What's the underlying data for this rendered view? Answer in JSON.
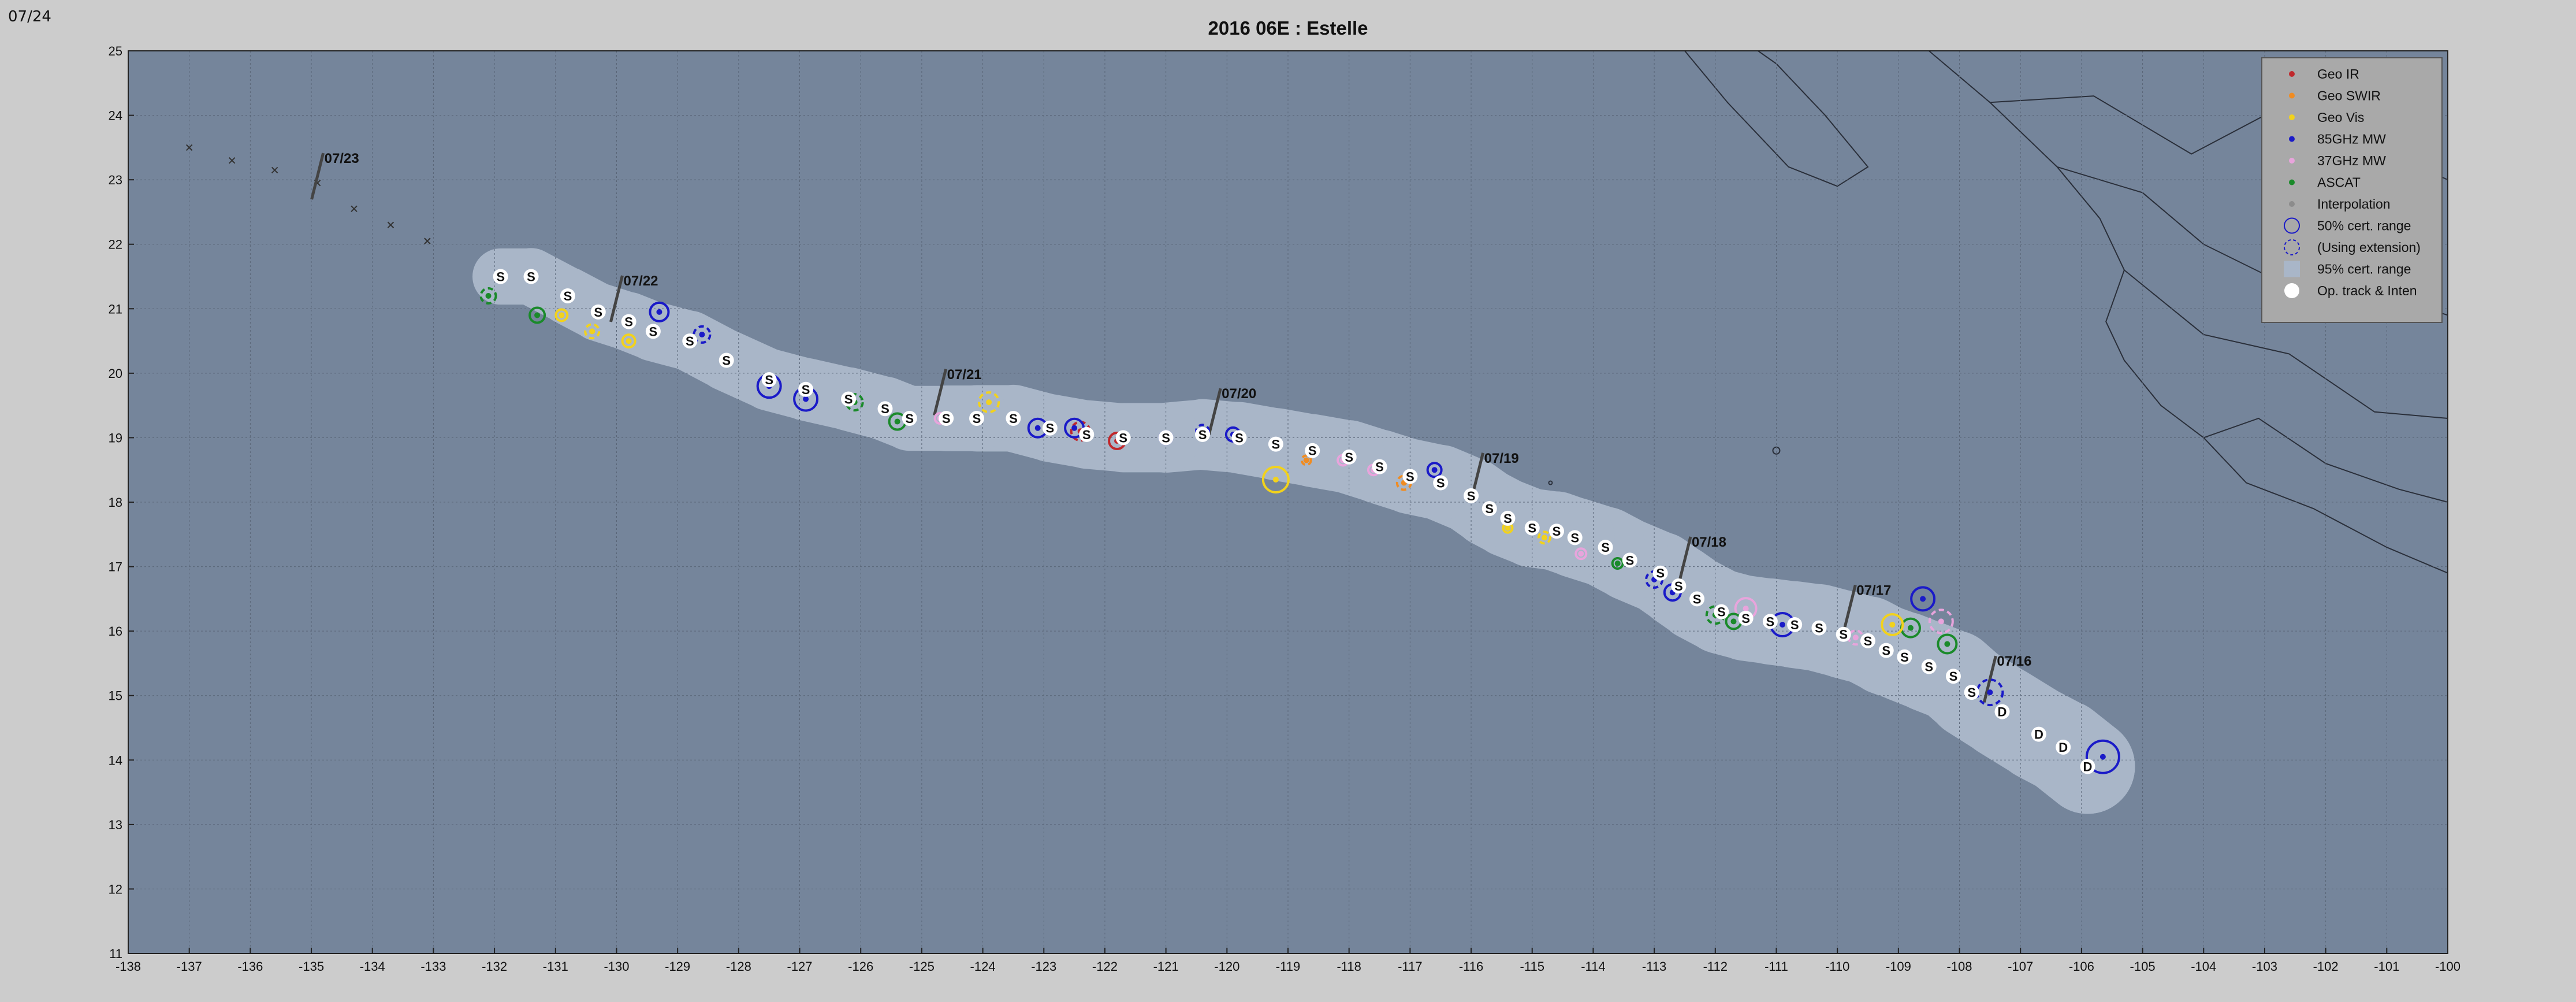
{
  "corner_label": "07/24",
  "chart_data": {
    "type": "scatter",
    "title": "2016  06E :  Estelle",
    "xlabel": "",
    "ylabel": "",
    "xlim": [
      -138,
      -100
    ],
    "ylim": [
      11,
      25
    ],
    "xticks": [
      -138,
      -137,
      -136,
      -135,
      -134,
      -133,
      -132,
      -131,
      -130,
      -129,
      -128,
      -127,
      -126,
      -125,
      -124,
      -123,
      -122,
      -121,
      -120,
      -119,
      -118,
      -117,
      -116,
      -115,
      -114,
      -113,
      -112,
      -111,
      -110,
      -109,
      -108,
      -107,
      -106,
      -105,
      -104,
      -103,
      -102,
      -101,
      -100
    ],
    "yticks": [
      11,
      12,
      13,
      14,
      15,
      16,
      17,
      18,
      19,
      20,
      21,
      22,
      23,
      24,
      25
    ],
    "grid": true,
    "legend_position": "top-right",
    "colors": {
      "ocean": "#75859b",
      "cone": "#a9b6c8",
      "land_line": "#2a2f3a",
      "geo_ir": "#c0282c",
      "geo_swir": "#f08c22",
      "geo_vis": "#f2d21c",
      "mw85": "#1a1ac8",
      "mw37": "#e8a4dc",
      "ascat": "#1a8a2a",
      "interp": "#8c8c8c",
      "op_track": "#ffffff"
    },
    "legend": [
      {
        "label": "Geo IR",
        "kind": "dot",
        "color": "#c0282c"
      },
      {
        "label": "Geo SWIR",
        "kind": "dot",
        "color": "#f08c22"
      },
      {
        "label": "Geo Vis",
        "kind": "dot",
        "color": "#f2d21c"
      },
      {
        "label": "85GHz MW",
        "kind": "dot",
        "color": "#1a1ac8"
      },
      {
        "label": "37GHz MW",
        "kind": "dot",
        "color": "#e8a4dc"
      },
      {
        "label": "ASCAT",
        "kind": "dot",
        "color": "#1a8a2a"
      },
      {
        "label": "Interpolation",
        "kind": "dot",
        "color": "#8c8c8c"
      },
      {
        "label": "50% cert. range",
        "kind": "circle",
        "color": "#1a1ac8"
      },
      {
        "label": "(Using extension)",
        "kind": "dashcircle",
        "color": "#1a1ac8"
      },
      {
        "label": "95% cert. range",
        "kind": "square",
        "color": "#a9b6c8"
      },
      {
        "label": "Op. track & Inten",
        "kind": "bigdot",
        "color": "#ffffff"
      }
    ],
    "op_track_points": [
      [
        -105.9,
        13.9,
        "D"
      ],
      [
        -106.3,
        14.2,
        "D"
      ],
      [
        -106.7,
        14.4,
        "D"
      ],
      [
        -107.3,
        14.75,
        "D"
      ],
      [
        -107.8,
        15.05,
        "S"
      ],
      [
        -108.1,
        15.3,
        "S"
      ],
      [
        -108.5,
        15.45,
        "S"
      ],
      [
        -108.9,
        15.6,
        "S"
      ],
      [
        -109.2,
        15.7,
        "S"
      ],
      [
        -109.5,
        15.85,
        "S"
      ],
      [
        -109.9,
        15.95,
        "S"
      ],
      [
        -110.3,
        16.05,
        "S"
      ],
      [
        -110.7,
        16.1,
        "S"
      ],
      [
        -111.1,
        16.15,
        "S"
      ],
      [
        -111.5,
        16.2,
        "S"
      ],
      [
        -111.9,
        16.3,
        "S"
      ],
      [
        -112.3,
        16.5,
        "S"
      ],
      [
        -112.6,
        16.7,
        "S"
      ],
      [
        -112.9,
        16.9,
        "S"
      ],
      [
        -113.4,
        17.1,
        "S"
      ],
      [
        -113.8,
        17.3,
        "S"
      ],
      [
        -114.3,
        17.45,
        "S"
      ],
      [
        -114.6,
        17.55,
        "S"
      ],
      [
        -115.0,
        17.6,
        "S"
      ],
      [
        -115.4,
        17.75,
        "S"
      ],
      [
        -115.7,
        17.9,
        "S"
      ],
      [
        -116.0,
        18.1,
        "S"
      ],
      [
        -116.5,
        18.3,
        "S"
      ],
      [
        -117.0,
        18.4,
        "S"
      ],
      [
        -117.5,
        18.55,
        "S"
      ],
      [
        -118.0,
        18.7,
        "S"
      ],
      [
        -118.6,
        18.8,
        "S"
      ],
      [
        -119.2,
        18.9,
        "S"
      ],
      [
        -119.8,
        19.0,
        "S"
      ],
      [
        -120.4,
        19.05,
        "S"
      ],
      [
        -121.0,
        19.0,
        "S"
      ],
      [
        -121.7,
        19.0,
        "S"
      ],
      [
        -122.3,
        19.05,
        "S"
      ],
      [
        -122.9,
        19.15,
        "S"
      ],
      [
        -123.5,
        19.3,
        "S"
      ],
      [
        -124.1,
        19.3,
        "S"
      ],
      [
        -124.6,
        19.3,
        "S"
      ],
      [
        -125.2,
        19.3,
        "S"
      ],
      [
        -125.6,
        19.45,
        "S"
      ],
      [
        -126.2,
        19.6,
        "S"
      ],
      [
        -126.9,
        19.75,
        "S"
      ],
      [
        -127.5,
        19.9,
        "S"
      ],
      [
        -128.2,
        20.2,
        "S"
      ],
      [
        -128.8,
        20.5,
        "S"
      ],
      [
        -129.4,
        20.65,
        "S"
      ],
      [
        -129.8,
        20.8,
        "S"
      ],
      [
        -130.3,
        20.95,
        "S"
      ],
      [
        -130.8,
        21.2,
        "S"
      ],
      [
        -131.4,
        21.5,
        "S"
      ],
      [
        -131.9,
        21.5,
        "S"
      ]
    ],
    "fixes": [
      [
        -105.65,
        14.05,
        "mw85",
        28
      ],
      [
        -107.5,
        15.05,
        "mw85",
        22
      ],
      [
        -108.2,
        15.8,
        "ascat",
        16
      ],
      [
        -108.6,
        16.5,
        "mw85",
        20
      ],
      [
        -108.3,
        16.15,
        "mw37",
        20
      ],
      [
        -108.8,
        16.05,
        "ascat",
        16
      ],
      [
        -109.1,
        16.1,
        "geo_vis",
        18
      ],
      [
        -109.7,
        15.9,
        "mw37",
        12
      ],
      [
        -110.9,
        16.1,
        "mw85",
        20
      ],
      [
        -111.5,
        16.35,
        "mw37",
        18
      ],
      [
        -112.0,
        16.25,
        "ascat",
        15
      ],
      [
        -111.7,
        16.15,
        "ascat",
        13
      ],
      [
        -112.7,
        16.6,
        "mw85",
        14
      ],
      [
        -113.0,
        16.8,
        "mw85",
        14
      ],
      [
        -113.6,
        17.05,
        "ascat",
        9
      ],
      [
        -114.2,
        17.2,
        "mw37",
        9
      ],
      [
        -114.8,
        17.45,
        "geo_vis",
        10
      ],
      [
        -115.4,
        17.6,
        "geo_vis",
        8
      ],
      [
        -116.6,
        18.5,
        "mw85",
        12
      ],
      [
        -117.1,
        18.3,
        "geo_swir",
        12
      ],
      [
        -117.6,
        18.5,
        "mw37",
        9
      ],
      [
        -118.1,
        18.65,
        "mw37",
        9
      ],
      [
        -118.7,
        18.65,
        "geo_swir",
        8
      ],
      [
        -119.2,
        18.35,
        "geo_vis",
        22
      ],
      [
        -119.9,
        19.05,
        "mw85",
        12
      ],
      [
        -120.4,
        19.1,
        "mw85",
        11
      ],
      [
        -121.0,
        19.0,
        "mw85",
        11
      ],
      [
        -121.8,
        18.95,
        "geo_ir",
        14
      ],
      [
        -122.4,
        19.1,
        "geo_ir",
        16
      ],
      [
        -122.5,
        19.15,
        "mw85",
        16
      ],
      [
        -123.1,
        19.15,
        "mw85",
        16
      ],
      [
        -123.9,
        19.55,
        "geo_vis",
        17
      ],
      [
        -124.7,
        19.3,
        "mw37",
        9
      ],
      [
        -125.4,
        19.25,
        "ascat",
        14
      ],
      [
        -126.1,
        19.55,
        "ascat",
        14
      ],
      [
        -126.9,
        19.6,
        "mw85",
        20
      ],
      [
        -127.5,
        19.8,
        "mw85",
        20
      ],
      [
        -128.6,
        20.6,
        "mw85",
        14
      ],
      [
        -129.3,
        20.95,
        "mw85",
        16
      ],
      [
        -129.8,
        20.5,
        "geo_vis",
        11
      ],
      [
        -130.4,
        20.65,
        "geo_vis",
        12
      ],
      [
        -130.9,
        20.9,
        "geo_vis",
        10
      ],
      [
        -131.3,
        20.9,
        "ascat",
        13
      ],
      [
        -132.1,
        21.2,
        "ascat",
        13
      ]
    ],
    "date_labels": [
      {
        "text": "07/16",
        "lon": -107.5,
        "lat": 15.3
      },
      {
        "text": "07/17",
        "lon": -109.8,
        "lat": 16.4
      },
      {
        "text": "07/18",
        "lon": -112.5,
        "lat": 17.15
      },
      {
        "text": "07/19",
        "lon": -115.9,
        "lat": 18.45
      },
      {
        "text": "07/20",
        "lon": -120.2,
        "lat": 19.45
      },
      {
        "text": "07/21",
        "lon": -124.7,
        "lat": 19.75
      },
      {
        "text": "07/22",
        "lon": -130.0,
        "lat": 21.2
      },
      {
        "text": "07/23",
        "lon": -134.9,
        "lat": 23.1
      }
    ],
    "extrap_crosses": [
      [
        -133.1,
        22.05
      ],
      [
        -133.7,
        22.3
      ],
      [
        -134.3,
        22.55
      ],
      [
        -134.9,
        22.95
      ],
      [
        -135.6,
        23.15
      ],
      [
        -136.3,
        23.3
      ],
      [
        -137.0,
        23.5
      ]
    ]
  }
}
